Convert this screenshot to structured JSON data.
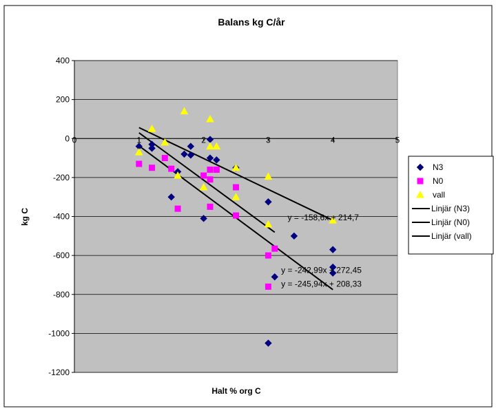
{
  "chart_data": {
    "type": "scatter",
    "title": "Balans kg C/år",
    "xlabel": "Halt % org C",
    "ylabel": "kg C",
    "xlim": [
      0,
      5
    ],
    "ylim": [
      -1200,
      400
    ],
    "x_ticks": [
      0,
      1,
      2,
      3,
      4,
      5
    ],
    "y_ticks": [
      400,
      200,
      0,
      -200,
      -400,
      -600,
      -800,
      -1000,
      -1200
    ],
    "grid": "horizontal",
    "plot_background": "#c0c0c0",
    "legend_position": "right",
    "series": [
      {
        "name": "N3",
        "marker": "diamond",
        "color": "#000080",
        "points": [
          [
            1.0,
            -40
          ],
          [
            1.2,
            -30
          ],
          [
            1.2,
            -50
          ],
          [
            1.5,
            -300
          ],
          [
            1.6,
            -170
          ],
          [
            1.7,
            -80
          ],
          [
            1.8,
            -40
          ],
          [
            1.8,
            -85
          ],
          [
            2.0,
            -410
          ],
          [
            2.1,
            -5
          ],
          [
            2.1,
            -100
          ],
          [
            2.2,
            -110
          ],
          [
            2.5,
            -150
          ],
          [
            3.0,
            -325
          ],
          [
            3.0,
            -1050
          ],
          [
            3.1,
            -710
          ],
          [
            3.4,
            -500
          ],
          [
            4.0,
            -570
          ],
          [
            4.0,
            -660
          ],
          [
            4.0,
            -690
          ]
        ]
      },
      {
        "name": "N0",
        "marker": "square",
        "color": "#ff00ff",
        "points": [
          [
            1.0,
            -130
          ],
          [
            1.2,
            -150
          ],
          [
            1.4,
            -100
          ],
          [
            1.5,
            -155
          ],
          [
            1.6,
            -360
          ],
          [
            2.0,
            -190
          ],
          [
            2.1,
            -210
          ],
          [
            2.1,
            -350
          ],
          [
            2.1,
            -160
          ],
          [
            2.2,
            -160
          ],
          [
            2.5,
            -250
          ],
          [
            2.5,
            -395
          ],
          [
            3.0,
            -600
          ],
          [
            3.0,
            -760
          ],
          [
            3.1,
            -565
          ]
        ]
      },
      {
        "name": "vall",
        "marker": "triangle",
        "color": "#ffff00",
        "points": [
          [
            1.0,
            -70
          ],
          [
            1.2,
            50
          ],
          [
            1.4,
            -20
          ],
          [
            1.6,
            -190
          ],
          [
            1.7,
            140
          ],
          [
            2.0,
            -250
          ],
          [
            2.1,
            100
          ],
          [
            2.1,
            -40
          ],
          [
            2.2,
            -40
          ],
          [
            2.5,
            -150
          ],
          [
            2.5,
            -300
          ],
          [
            3.0,
            -195
          ],
          [
            3.0,
            -440
          ],
          [
            4.0,
            -420
          ]
        ]
      }
    ],
    "trendlines": [
      {
        "name": "Linjär (N3)",
        "slope": -245.94,
        "intercept": 208.33,
        "x_range": [
          1,
          4
        ],
        "color": "#000000"
      },
      {
        "name": "Linjär (N0)",
        "slope": -242.99,
        "intercept": 272.45,
        "x_range": [
          1,
          3.1
        ],
        "color": "#000000"
      },
      {
        "name": "Linjär (vall)",
        "slope": -158.6,
        "intercept": 214.7,
        "x_range": [
          1,
          4
        ],
        "color": "#000000"
      }
    ],
    "annotations": [
      {
        "text": "y = -158,6x + 214,7",
        "x": 3.3,
        "y": -420
      },
      {
        "text": "y = -242,99x + 272,45",
        "x": 3.2,
        "y": -690
      },
      {
        "text": "y = -245,94x + 208,33",
        "x": 3.2,
        "y": -760
      }
    ]
  }
}
